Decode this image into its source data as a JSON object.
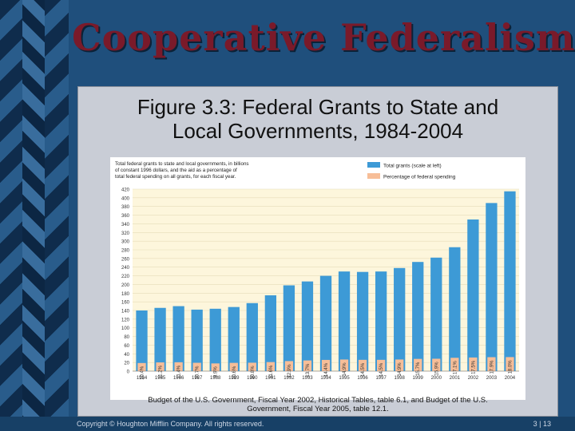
{
  "slide": {
    "title": "Cooperative Federalism",
    "figure_title_line1": "Figure 3.3: Federal Grants to State and",
    "figure_title_line2": "Local Governments, 1984-2004",
    "caption_line1": "Budget of the U.S. Government, Fiscal Year 2002, Historical Tables, table 6.1, and Budget of the U.S.",
    "caption_line2": "Government, Fiscal Year 2005, table 12.1.",
    "copyright": "Copyright © Houghton Mifflin Company. All rights reserved.",
    "page": "3 | 13"
  },
  "chart_data": {
    "type": "bar",
    "annotation": [
      "Total federal grants to state and local governments, in billions",
      "of constant 1996 dollars, and the aid as a percentage of",
      "total federal spending on all grants, for each fiscal year."
    ],
    "legend_position": "top-right",
    "categories": [
      "1984",
      "1985",
      "1986",
      "1987",
      "1988",
      "1989",
      "1990",
      "1991",
      "1992",
      "1993",
      "1994",
      "1995",
      "1996",
      "1997",
      "1998",
      "1999",
      "2000",
      "2001",
      "2002",
      "2003",
      "2004"
    ],
    "series": [
      {
        "name": "Total grants (scale at left)",
        "color": "#3d9ad6",
        "values": [
          140,
          146,
          150,
          142,
          144,
          148,
          157,
          175,
          198,
          207,
          220,
          230,
          229,
          230,
          238,
          252,
          262,
          286,
          350,
          388,
          415
        ]
      },
      {
        "name": "Percentage of federal spending",
        "color": "#f7be98",
        "values": [
          10.4,
          11.2,
          11.4,
          10.7,
          9.9,
          10.6,
          10.8,
          11.6,
          12.9,
          13.7,
          14.4,
          14.9,
          14.5,
          14.5,
          14.9,
          15.7,
          15.9,
          17.1,
          17.5,
          17.9,
          18.0
        ],
        "labels": [
          "10.4%",
          "11.2%",
          "11.4%",
          "10.7%",
          "9.9%",
          "10.6%",
          "10.8%",
          "11.6%",
          "12.9%",
          "13.7%",
          "14.4%",
          "14.9%",
          "14.5%",
          "14.5%",
          "14.9%",
          "15.7%",
          "15.9%",
          "17.1%",
          "17.5%",
          "17.9%",
          "18.0%"
        ]
      }
    ],
    "y_ticks": [
      "0",
      "20",
      "40",
      "60",
      "80",
      "100",
      "120",
      "140",
      "160",
      "180",
      "200",
      "220",
      "240",
      "260",
      "280",
      "300",
      "320",
      "340",
      "360",
      "380",
      "400",
      "420"
    ],
    "ylim": [
      0,
      420
    ],
    "grid": true
  }
}
